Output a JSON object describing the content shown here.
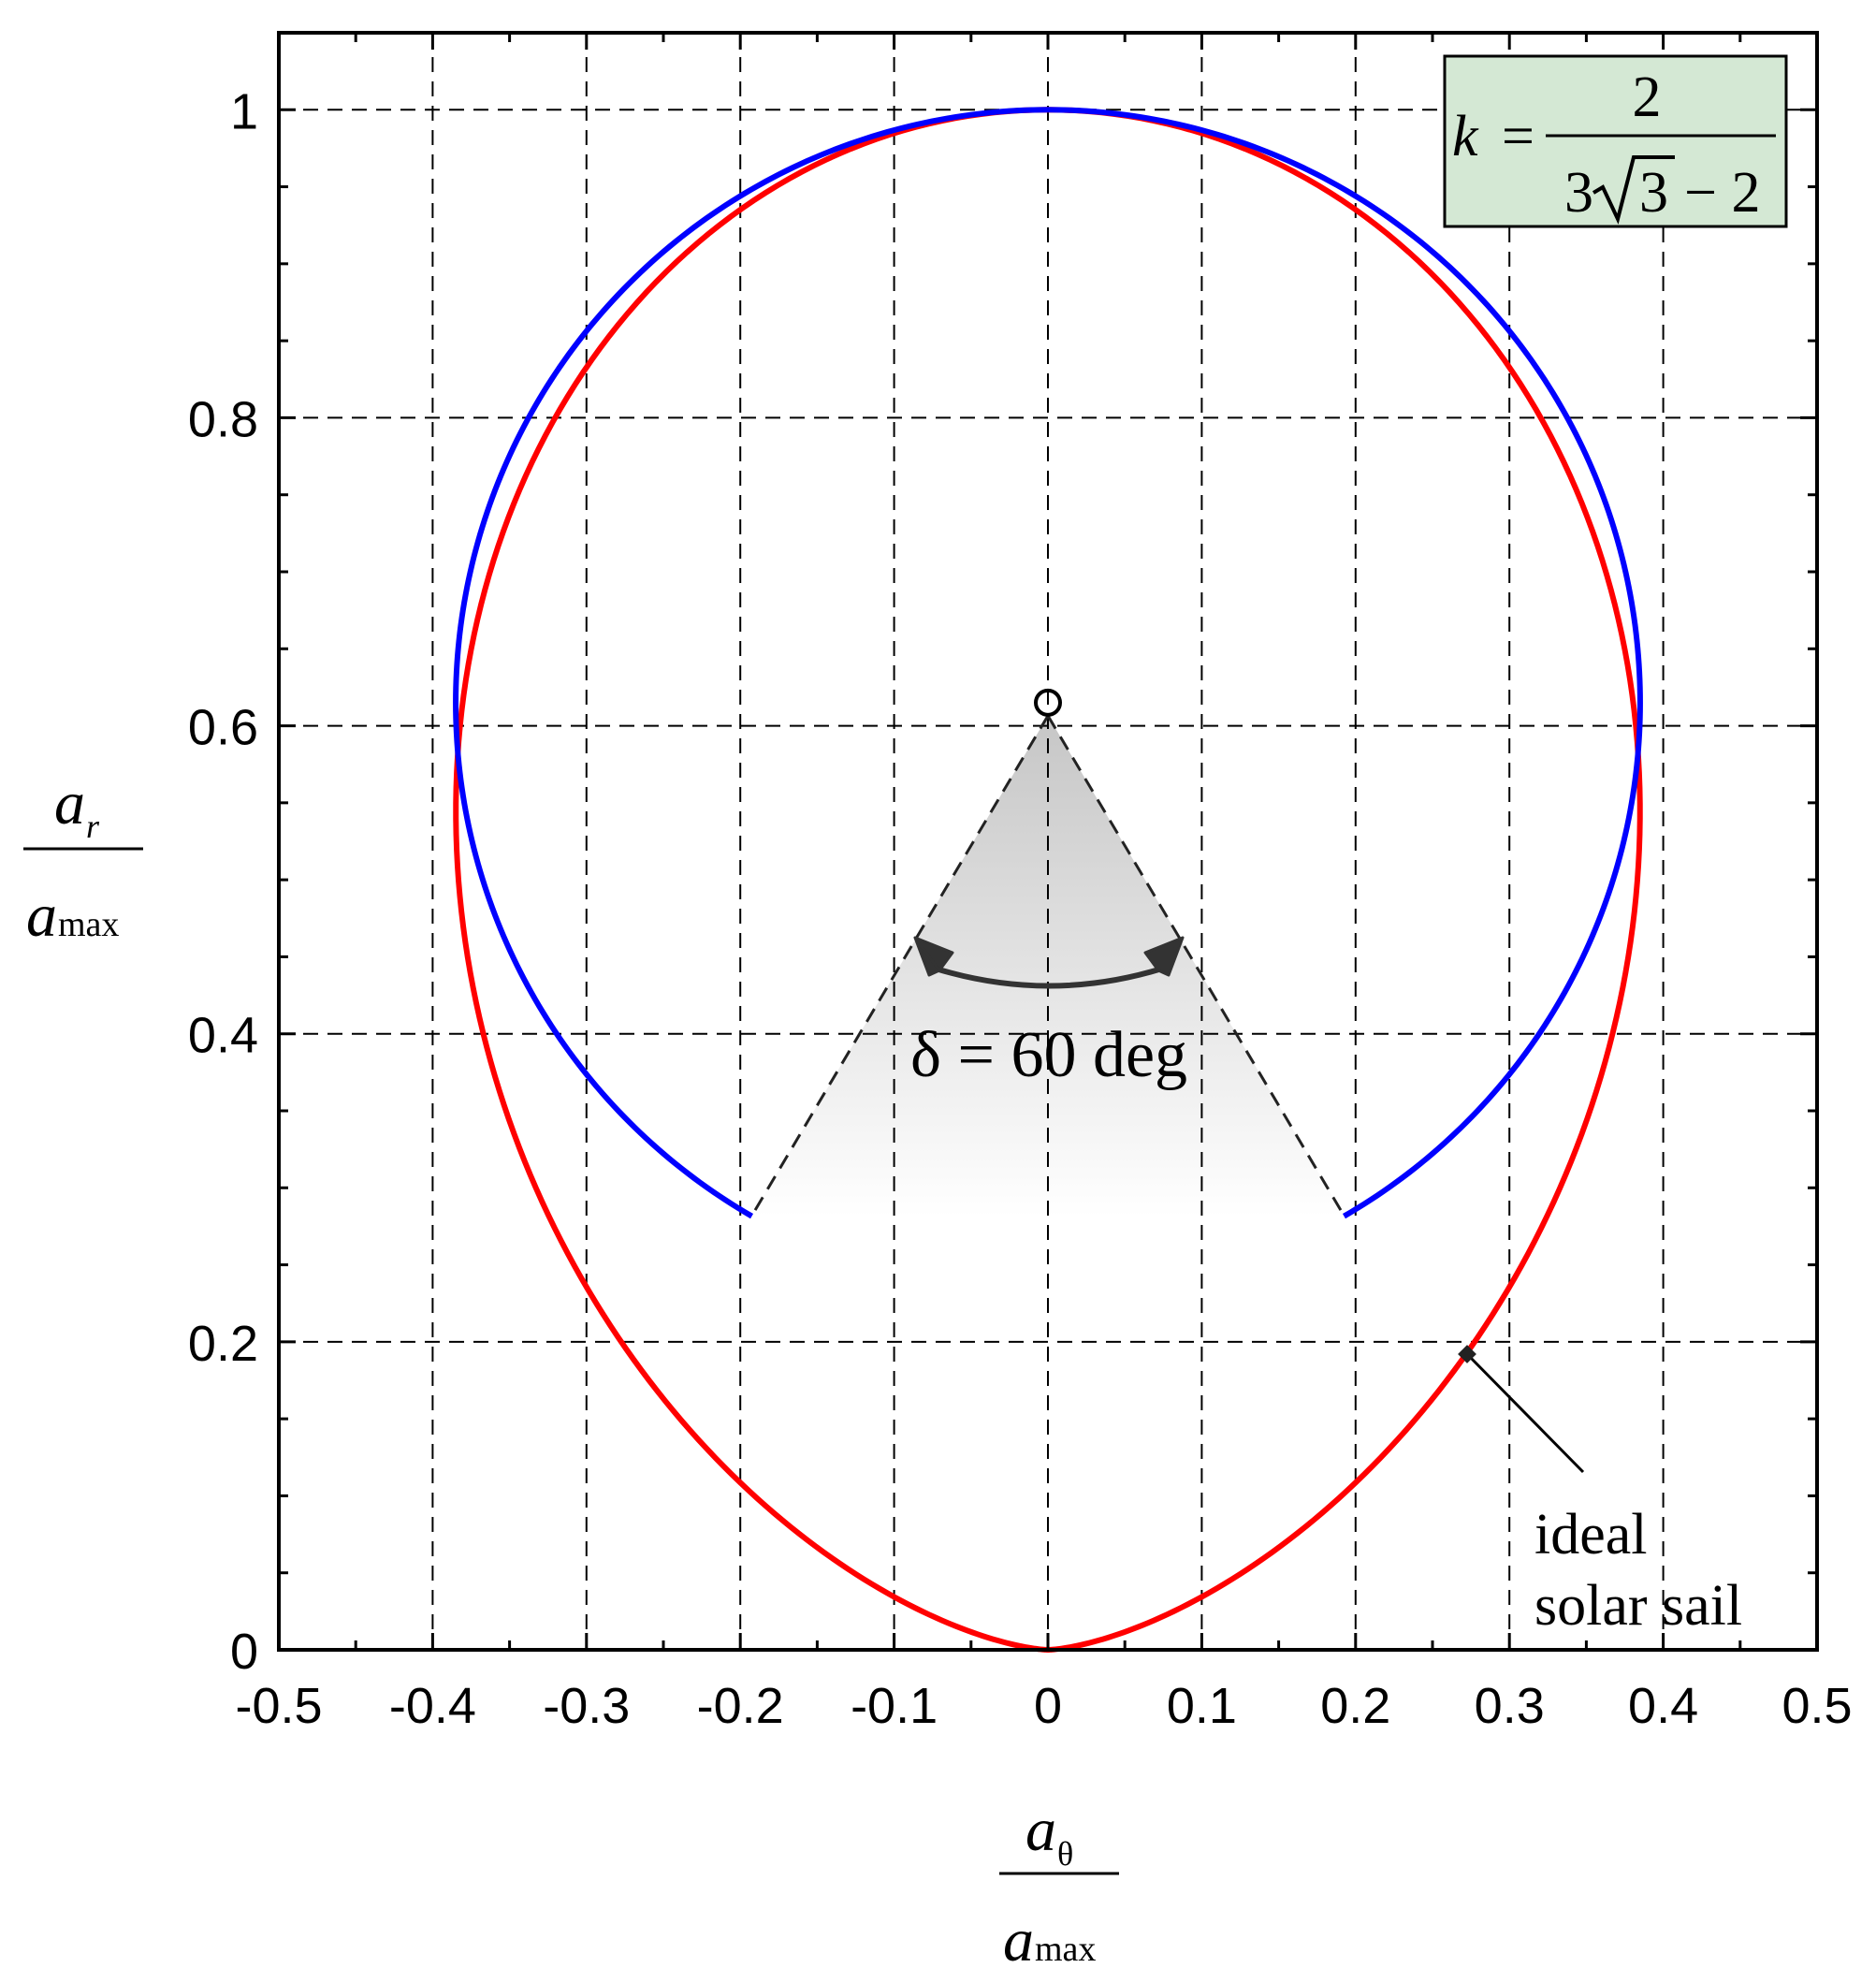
{
  "chart_data": {
    "type": "line",
    "title": "",
    "xlabel": {
      "numerator": "a",
      "numerator_sub": "θ",
      "denominator": "a",
      "denominator_sub": "max"
    },
    "ylabel": {
      "numerator": "a",
      "numerator_sub": "r",
      "denominator": "a",
      "denominator_sub": "max"
    },
    "xlim": [
      -0.5,
      0.5
    ],
    "ylim": [
      0,
      1.05
    ],
    "xticks": [
      -0.5,
      -0.4,
      -0.3,
      -0.2,
      -0.1,
      0,
      0.1,
      0.2,
      0.3,
      0.4,
      0.5
    ],
    "xtick_labels": [
      "-0.5",
      "-0.4",
      "-0.3",
      "-0.2",
      "-0.1",
      "0",
      "0.1",
      "0.2",
      "0.3",
      "0.4",
      "0.5"
    ],
    "yticks": [
      0,
      0.2,
      0.4,
      0.6,
      0.8,
      1
    ],
    "ytick_labels": [
      "0",
      "0.2",
      "0.4",
      "0.6",
      "0.8",
      "1"
    ],
    "grid": true,
    "series": [
      {
        "color": "#ff0000",
        "description": "ideal solar sail force bubble: ar = cos^3(a), at = cos^2(a) sin(a), a from -90 to 90 deg",
        "param": "ideal"
      },
      {
        "color": "#0000ff",
        "description": "circular arc of radius 0.385 centred at (0, 0.615), open at the bottom with a 60 deg gap",
        "center": [
          0,
          0.615
        ],
        "radius": 0.385,
        "gap_deg": 60
      }
    ],
    "annotations": {
      "box_formula": {
        "k": "k",
        "equals": "=",
        "numerator": "2",
        "den_left": "3",
        "den_radicand": "3",
        "den_right": "− 2",
        "bg_color": "#d4e8d4"
      },
      "delta_label": "δ = 60 deg",
      "cone_apex": [
        0,
        0.615
      ],
      "cone_points": [
        [
          -0.193,
          0.281
        ],
        [
          0.193,
          0.281
        ]
      ],
      "ideal_label_lines": [
        "ideal",
        "solar sail"
      ],
      "ideal_marker": [
        0.272,
        0.191
      ]
    }
  }
}
